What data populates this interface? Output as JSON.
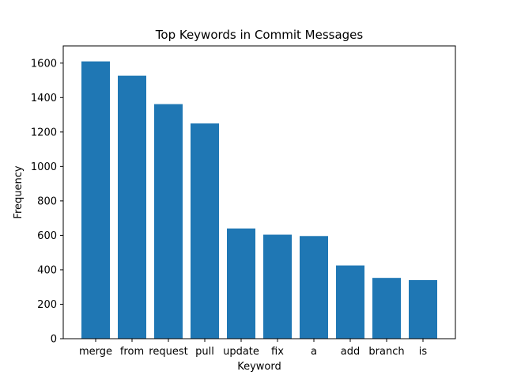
{
  "chart_data": {
    "type": "bar",
    "title": "Top Keywords in Commit Messages",
    "xlabel": "Keyword",
    "ylabel": "Frequency",
    "categories": [
      "merge",
      "from",
      "request",
      "pull",
      "update",
      "fix",
      "a",
      "add",
      "branch",
      "is"
    ],
    "values": [
      1610,
      1527,
      1362,
      1250,
      640,
      604,
      596,
      425,
      353,
      340
    ],
    "ylim": [
      0,
      1700
    ],
    "yticks": [
      0,
      200,
      400,
      600,
      800,
      1000,
      1200,
      1400,
      1600
    ],
    "bar_color": "#1f77b4",
    "grid": false,
    "legend": "none"
  }
}
